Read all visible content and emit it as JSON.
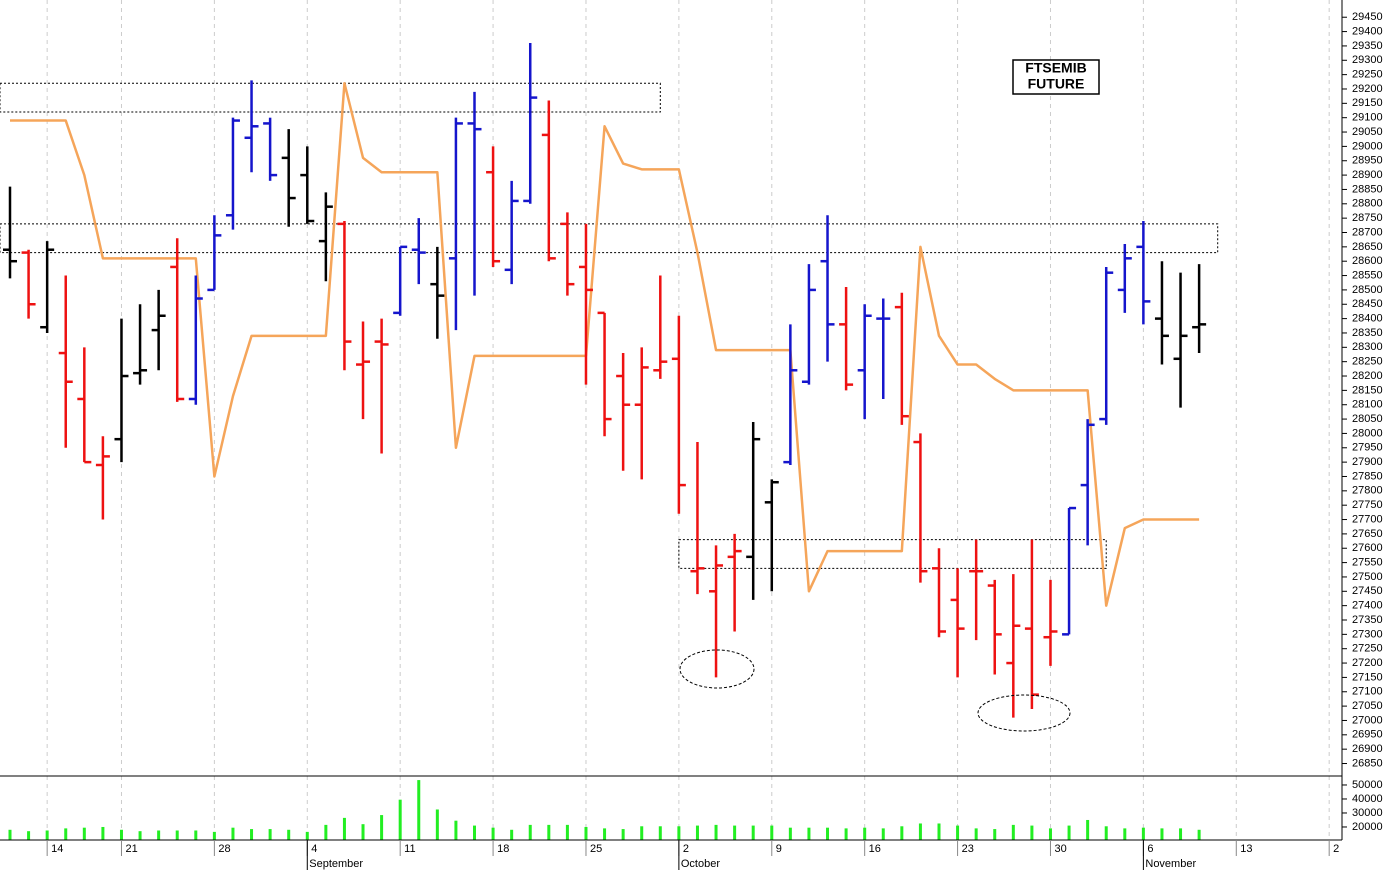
{
  "chart_data": {
    "type": "ohlc",
    "title_lines": [
      "FTSEMIB",
      "FUTURE"
    ],
    "categories": [
      null,
      null,
      "14",
      null,
      null,
      null,
      "21",
      null,
      null,
      null,
      null,
      "28",
      null,
      null,
      null,
      null,
      "4",
      null,
      null,
      null,
      null,
      "11",
      null,
      null,
      null,
      null,
      "18",
      null,
      null,
      null,
      null,
      "25",
      null,
      null,
      null,
      null,
      "2",
      null,
      null,
      null,
      null,
      "9",
      null,
      null,
      null,
      null,
      "16",
      null,
      null,
      null,
      null,
      "23",
      null,
      null,
      null,
      null,
      "30",
      null,
      null,
      null,
      null,
      "6",
      null,
      null,
      null,
      null,
      "13",
      null,
      null,
      null,
      null,
      "2"
    ],
    "months": [
      {
        "label": "September",
        "category": 16
      },
      {
        "label": "October",
        "category": 36
      },
      {
        "label": "November",
        "category": 61
      }
    ],
    "open": [
      28640,
      28630,
      28370,
      28280,
      28120,
      27890,
      27980,
      28210,
      28360,
      28580,
      28120,
      28500,
      28760,
      29030,
      29080,
      28960,
      28900,
      28670,
      28730,
      28240,
      28320,
      28420,
      28640,
      28520,
      28610,
      29080,
      28910,
      28570,
      28810,
      29040,
      28730,
      28580,
      28420,
      28200,
      28100,
      28220,
      28260,
      27520,
      27450,
      27570,
      27570,
      27760,
      27900,
      28180,
      28600,
      28380,
      28220,
      28400,
      28440,
      27970,
      27530,
      27420,
      27520,
      27470,
      27200,
      27320,
      27290,
      27300,
      27820,
      28050,
      28500,
      28650,
      28400,
      28260,
      28370,
      null,
      null,
      null,
      null,
      null,
      null,
      null
    ],
    "high": [
      28860,
      28640,
      28670,
      28550,
      28300,
      27990,
      28400,
      28450,
      28500,
      28680,
      28550,
      28760,
      29100,
      29230,
      29100,
      29060,
      29000,
      28840,
      28740,
      28390,
      28400,
      28650,
      28750,
      28650,
      29100,
      29190,
      29000,
      28880,
      29360,
      29160,
      28770,
      28730,
      28420,
      28280,
      28300,
      28550,
      28410,
      27970,
      27610,
      27650,
      28040,
      27840,
      28380,
      28590,
      28760,
      28510,
      28450,
      28470,
      28490,
      28000,
      27600,
      27530,
      27630,
      27490,
      27510,
      27630,
      27490,
      27740,
      28050,
      28580,
      28660,
      28740,
      28600,
      28560,
      28590,
      null,
      null,
      null,
      null,
      null,
      null,
      null
    ],
    "low": [
      28540,
      28400,
      28350,
      27950,
      27900,
      27700,
      27900,
      28170,
      28220,
      28110,
      28100,
      28500,
      28710,
      28910,
      28880,
      28720,
      28730,
      28530,
      28220,
      28050,
      27930,
      28410,
      28520,
      28330,
      28360,
      28480,
      28580,
      28520,
      28800,
      28600,
      28480,
      28170,
      27990,
      27870,
      27840,
      28190,
      27720,
      27440,
      27150,
      27310,
      27420,
      27450,
      27890,
      28170,
      28250,
      28150,
      28050,
      28120,
      28030,
      27480,
      27290,
      27150,
      27280,
      27160,
      27010,
      27040,
      27190,
      27300,
      27610,
      28030,
      28420,
      28380,
      28240,
      28090,
      28280,
      null,
      null,
      null,
      null,
      null,
      null,
      null
    ],
    "close": [
      28600,
      28450,
      28640,
      28180,
      27900,
      27920,
      28200,
      28220,
      28410,
      28120,
      28470,
      28690,
      29090,
      29070,
      28900,
      28820,
      28740,
      28790,
      28320,
      28250,
      28310,
      28650,
      28630,
      28480,
      29080,
      29060,
      28600,
      28810,
      29170,
      28610,
      28520,
      28500,
      28050,
      28100,
      28230,
      28250,
      27820,
      27530,
      27540,
      27590,
      27980,
      27830,
      28220,
      28500,
      28380,
      28170,
      28410,
      28400,
      28060,
      27520,
      27310,
      27320,
      27520,
      27300,
      27330,
      27090,
      27310,
      27740,
      28030,
      28560,
      28610,
      28460,
      28340,
      28340,
      28380,
      null,
      null,
      null,
      null,
      null,
      null,
      null
    ],
    "bar_colors": [
      "#000000",
      "#ee1111",
      "#000000",
      "#ee1111",
      "#ee1111",
      "#ee1111",
      "#000000",
      "#000000",
      "#000000",
      "#ee1111",
      "#1515cc",
      "#1515cc",
      "#1515cc",
      "#1515cc",
      "#1515cc",
      "#000000",
      "#000000",
      "#000000",
      "#ee1111",
      "#ee1111",
      "#ee1111",
      "#1515cc",
      "#1515cc",
      "#000000",
      "#1515cc",
      "#1515cc",
      "#ee1111",
      "#1515cc",
      "#1515cc",
      "#ee1111",
      "#ee1111",
      "#ee1111",
      "#ee1111",
      "#ee1111",
      "#ee1111",
      "#ee1111",
      "#ee1111",
      "#ee1111",
      "#ee1111",
      "#ee1111",
      "#000000",
      "#000000",
      "#1515cc",
      "#1515cc",
      "#1515cc",
      "#ee1111",
      "#1515cc",
      "#1515cc",
      "#ee1111",
      "#ee1111",
      "#ee1111",
      "#ee1111",
      "#ee1111",
      "#ee1111",
      "#ee1111",
      "#ee1111",
      "#ee1111",
      "#1515cc",
      "#1515cc",
      "#1515cc",
      "#1515cc",
      "#1515cc",
      "#000000",
      "#000000",
      "#000000",
      null,
      null,
      null,
      null,
      null,
      null,
      null
    ],
    "line": {
      "color": "#f5a55a",
      "values": [
        29090,
        29090,
        29090,
        29090,
        28900,
        28610,
        28610,
        28610,
        28610,
        28610,
        28610,
        27850,
        28130,
        28340,
        28340,
        28340,
        28340,
        28340,
        29220,
        28960,
        28910,
        28910,
        28910,
        28910,
        27950,
        28270,
        28270,
        28270,
        28270,
        28270,
        28270,
        28270,
        29070,
        28940,
        28920,
        28920,
        28920,
        28630,
        28290,
        28290,
        28290,
        28290,
        28290,
        27450,
        27590,
        27590,
        27590,
        27590,
        27590,
        28650,
        28340,
        28240,
        28240,
        28190,
        28150,
        28150,
        28150,
        28150,
        28150,
        27400,
        27670,
        27700,
        27700,
        27700,
        27700,
        null,
        null,
        null,
        null,
        null,
        null,
        null
      ]
    },
    "volume": {
      "color": "#22ee22",
      "values": [
        18000,
        17000,
        17500,
        19000,
        19500,
        20000,
        18000,
        17000,
        17500,
        17500,
        17500,
        16500,
        19500,
        18500,
        18500,
        18000,
        16500,
        21500,
        26500,
        22000,
        28500,
        39500,
        53500,
        32500,
        24500,
        21000,
        19500,
        18000,
        21500,
        21500,
        21500,
        20000,
        19000,
        18500,
        20500,
        20500,
        20500,
        21000,
        21500,
        21000,
        21000,
        21000,
        19500,
        19500,
        19500,
        19000,
        19500,
        19000,
        20500,
        22500,
        22500,
        21000,
        19000,
        18500,
        21500,
        21000,
        19000,
        21000,
        25000,
        20500,
        19000,
        19500,
        19000,
        19000,
        18000,
        null,
        null,
        null,
        null,
        null,
        null,
        null
      ],
      "ylim": [
        10700,
        55700
      ],
      "yticks": [
        20000,
        30000,
        40000,
        50000
      ]
    },
    "zones": [
      {
        "low": 29120,
        "high": 29220,
        "to": 35
      },
      {
        "low": 28630,
        "high": 28730,
        "to": 65
      },
      {
        "low": 27530,
        "high": 27630,
        "from": 36,
        "to": 59
      }
    ],
    "ylim": [
      26810,
      29510
    ],
    "yticks": [
      26850,
      26900,
      26950,
      27000,
      27050,
      27100,
      27150,
      27200,
      27250,
      27300,
      27350,
      27400,
      27450,
      27500,
      27550,
      27600,
      27650,
      27700,
      27750,
      27800,
      27850,
      27900,
      27950,
      28000,
      28050,
      28100,
      28150,
      28200,
      28250,
      28300,
      28350,
      28400,
      28450,
      28500,
      28550,
      28600,
      28650,
      28700,
      28750,
      28800,
      28850,
      28900,
      28950,
      29000,
      29050,
      29100,
      29150,
      29200,
      29250,
      29300,
      29350,
      29400,
      29450
    ],
    "grid": true
  }
}
